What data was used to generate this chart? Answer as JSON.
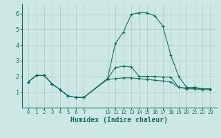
{
  "bg_color": "#cce8e4",
  "grid_color": "#b0c8c4",
  "line_color": "#1a6b5e",
  "xlabel": "Humidex (Indice chaleur)",
  "xlabel_fontsize": 7,
  "ylim": [
    0.0,
    6.6
  ],
  "xlim": [
    -0.8,
    23.8
  ],
  "yticks": [
    1,
    2,
    3,
    4,
    5,
    6
  ],
  "xticks": [
    0,
    1,
    2,
    3,
    4,
    5,
    6,
    7,
    10,
    11,
    12,
    13,
    14,
    15,
    16,
    17,
    18,
    19,
    20,
    21,
    22,
    23
  ],
  "series_peak_x": [
    0,
    1,
    2,
    3,
    4,
    5,
    6,
    7,
    10,
    11,
    12,
    13,
    14,
    15,
    16,
    17,
    18,
    19,
    20,
    21,
    22,
    23
  ],
  "series_peak_y": [
    1.65,
    2.05,
    2.05,
    1.5,
    1.15,
    0.75,
    0.65,
    0.65,
    1.85,
    4.1,
    4.8,
    5.95,
    6.05,
    6.05,
    5.85,
    5.2,
    3.35,
    2.0,
    1.3,
    1.25,
    1.2,
    1.2
  ],
  "series_flat_x": [
    0,
    1,
    2,
    3,
    4,
    5,
    6,
    7,
    10,
    11,
    12,
    13,
    14,
    15,
    16,
    17,
    18,
    19,
    20,
    21,
    22,
    23
  ],
  "series_flat_y": [
    1.65,
    2.05,
    2.05,
    1.5,
    1.15,
    0.75,
    0.65,
    0.65,
    1.85,
    2.55,
    2.65,
    2.6,
    2.0,
    2.0,
    2.0,
    1.95,
    1.95,
    1.3,
    1.25,
    1.3,
    1.2,
    1.2
  ],
  "series_low_x": [
    0,
    1,
    2,
    3,
    4,
    5,
    6,
    7,
    10,
    11,
    12,
    13,
    14,
    15,
    16,
    17,
    18,
    19,
    20,
    21,
    22,
    23
  ],
  "series_low_y": [
    1.65,
    2.05,
    2.05,
    1.5,
    1.15,
    0.75,
    0.65,
    0.65,
    1.8,
    1.85,
    1.9,
    1.9,
    1.85,
    1.8,
    1.75,
    1.7,
    1.65,
    1.3,
    1.2,
    1.2,
    1.15,
    1.15
  ]
}
